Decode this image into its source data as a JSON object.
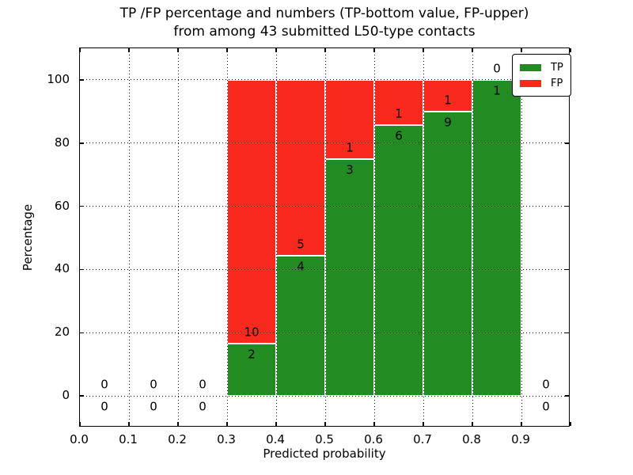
{
  "figure": {
    "title_line1": "TP /FP percentage and numbers (TP-bottom value, FP-upper)",
    "title_line2": "from among 43 submitted L50-type contacts",
    "xlabel": "Predicted probability",
    "ylabel": "Percentage"
  },
  "legend": {
    "items": [
      {
        "label": "TP",
        "color": "#228b22"
      },
      {
        "label": "FP",
        "color": "#fa291d"
      }
    ],
    "position": "upper right"
  },
  "chart_data": {
    "type": "bar",
    "stacked": true,
    "title": "TP /FP percentage and numbers (TP-bottom value, FP-upper) from among 43 submitted L50-type contacts",
    "xlabel": "Predicted probability",
    "ylabel": "Percentage",
    "total_contacts": 43,
    "bin_starts": [
      0.0,
      0.1,
      0.2,
      0.3,
      0.4,
      0.5,
      0.6,
      0.7,
      0.8,
      0.9
    ],
    "bin_width": 0.1,
    "series": [
      {
        "name": "TP",
        "color": "#228b22",
        "counts": [
          0,
          0,
          0,
          2,
          4,
          3,
          6,
          9,
          1,
          0
        ],
        "percent": [
          0,
          0,
          0,
          16.67,
          44.44,
          75.0,
          85.71,
          90.0,
          100.0,
          0
        ]
      },
      {
        "name": "FP",
        "color": "#fa291d",
        "counts": [
          0,
          0,
          0,
          10,
          5,
          1,
          1,
          1,
          0,
          0
        ],
        "percent": [
          0,
          0,
          0,
          83.33,
          55.56,
          25.0,
          14.29,
          10.0,
          0,
          0
        ]
      }
    ],
    "xlim": [
      0.0,
      1.0
    ],
    "ylim": [
      -10,
      110
    ],
    "x_tick_values": [
      0.0,
      0.1,
      0.2,
      0.3,
      0.4,
      0.5,
      0.6,
      0.7,
      0.8,
      0.9
    ],
    "x_tick_labels": [
      "0.0",
      "0.1",
      "0.2",
      "0.3",
      "0.4",
      "0.5",
      "0.6",
      "0.7",
      "0.8",
      "0.9"
    ],
    "y_tick_values": [
      0,
      20,
      40,
      60,
      80,
      100
    ],
    "y_tick_labels": [
      "0",
      "20",
      "40",
      "60",
      "80",
      "100"
    ],
    "grid": "dotted",
    "grid_above_bars": true,
    "legend_position": "upper right"
  }
}
